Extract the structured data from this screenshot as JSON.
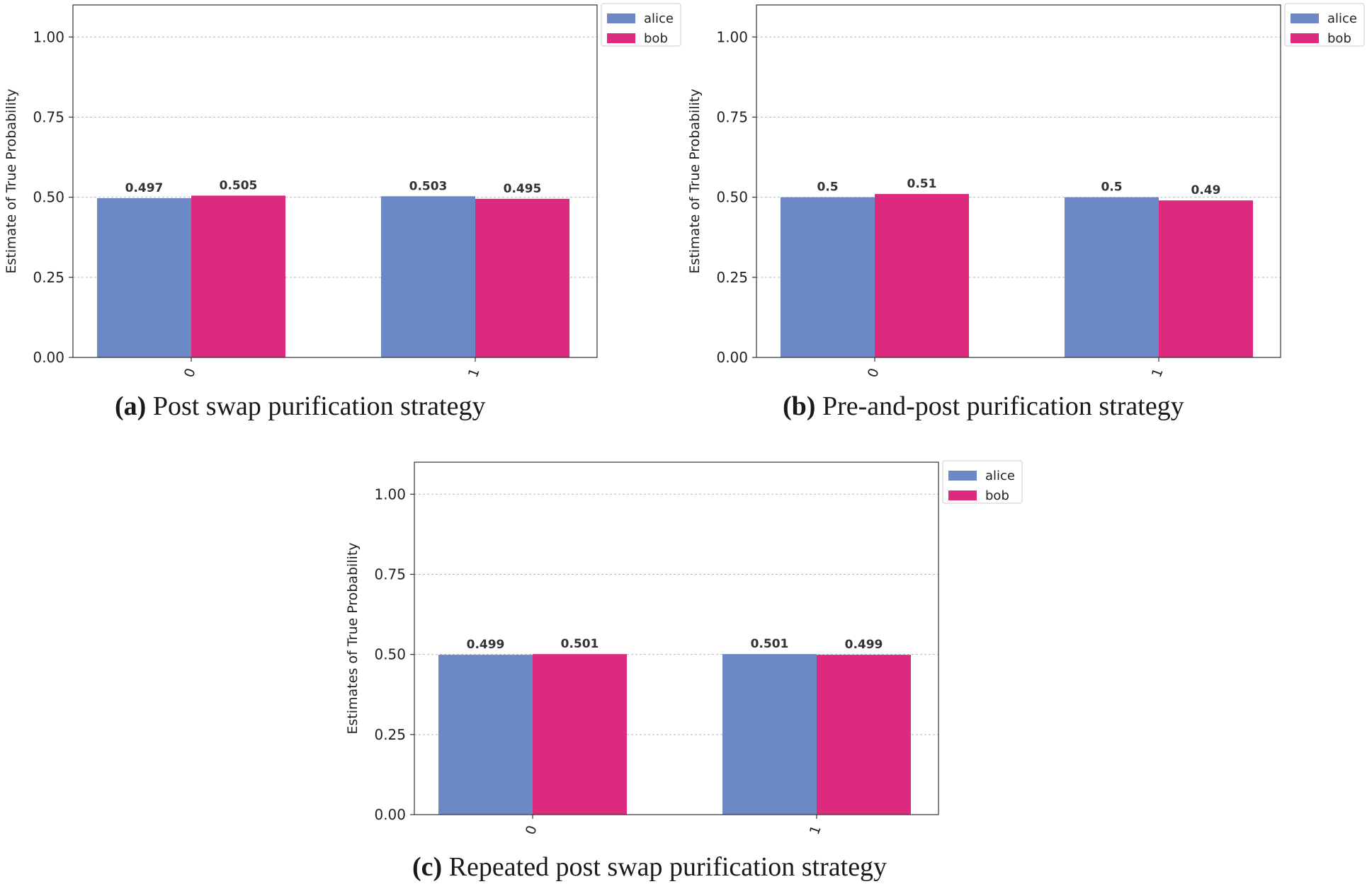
{
  "chart_data": [
    {
      "type": "bar",
      "id": "a",
      "caption_label": "(a)",
      "caption_text": "Post swap purification strategy",
      "ylabel": "Estimate of True Probability",
      "xlabel": "",
      "categories": [
        "0",
        "1"
      ],
      "ylim": [
        0,
        1.1
      ],
      "yticks": [
        "0.00",
        "0.25",
        "0.50",
        "0.75",
        "1.00"
      ],
      "ytick_values": [
        0,
        0.25,
        0.5,
        0.75,
        1.0
      ],
      "grid": true,
      "legend_position": "outside-top-right",
      "series": [
        {
          "name": "alice",
          "color": "#6c89c5",
          "values": [
            0.497,
            0.503
          ],
          "labels": [
            "0.497",
            "0.503"
          ]
        },
        {
          "name": "bob",
          "color": "#de2a7e",
          "values": [
            0.505,
            0.495
          ],
          "labels": [
            "0.505",
            "0.495"
          ]
        }
      ]
    },
    {
      "type": "bar",
      "id": "b",
      "caption_label": "(b)",
      "caption_text": "Pre-and-post purification strategy",
      "ylabel": "Estimate of True Probability",
      "xlabel": "",
      "categories": [
        "0",
        "1"
      ],
      "ylim": [
        0,
        1.1
      ],
      "yticks": [
        "0.00",
        "0.25",
        "0.50",
        "0.75",
        "1.00"
      ],
      "ytick_values": [
        0,
        0.25,
        0.5,
        0.75,
        1.0
      ],
      "grid": true,
      "legend_position": "outside-top-right",
      "series": [
        {
          "name": "alice",
          "color": "#6c89c5",
          "values": [
            0.5,
            0.5
          ],
          "labels": [
            "0.5",
            "0.5"
          ]
        },
        {
          "name": "bob",
          "color": "#de2a7e",
          "values": [
            0.51,
            0.49
          ],
          "labels": [
            "0.51",
            "0.49"
          ]
        }
      ]
    },
    {
      "type": "bar",
      "id": "c",
      "caption_label": "(c)",
      "caption_text": "Repeated post swap purification strategy",
      "ylabel": "Estimates of True Probability",
      "xlabel": "",
      "categories": [
        "0",
        "1"
      ],
      "ylim": [
        0,
        1.1
      ],
      "yticks": [
        "0.00",
        "0.25",
        "0.50",
        "0.75",
        "1.00"
      ],
      "ytick_values": [
        0,
        0.25,
        0.5,
        0.75,
        1.0
      ],
      "grid": true,
      "legend_position": "outside-top-right",
      "series": [
        {
          "name": "alice",
          "color": "#6c89c5",
          "values": [
            0.499,
            0.501
          ],
          "labels": [
            "0.499",
            "0.501"
          ]
        },
        {
          "name": "bob",
          "color": "#de2a7e",
          "values": [
            0.501,
            0.499
          ],
          "labels": [
            "0.501",
            "0.499"
          ]
        }
      ]
    }
  ]
}
